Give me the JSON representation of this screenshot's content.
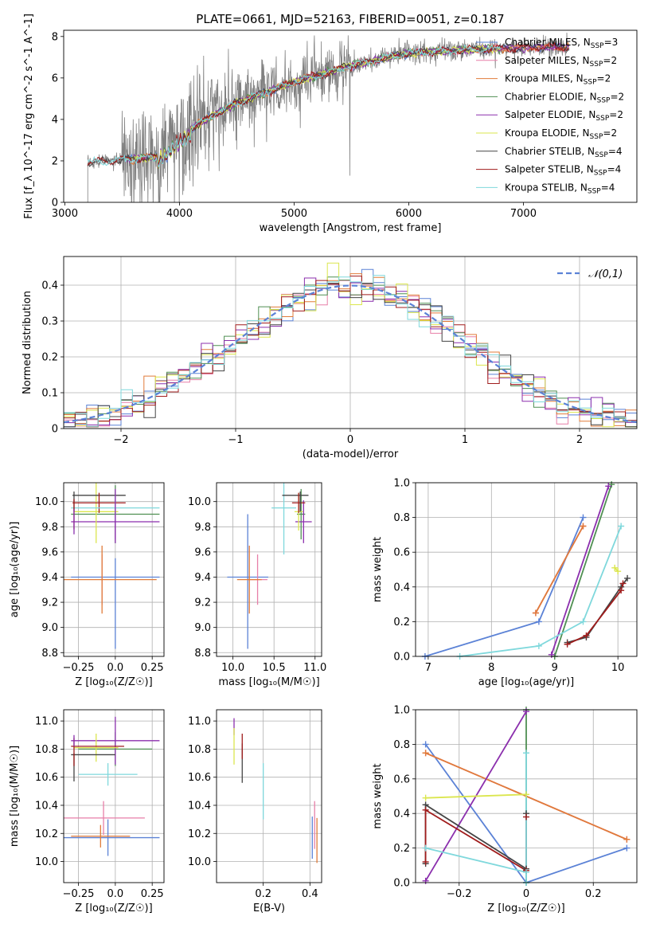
{
  "figure": {
    "title": "PLATE=0661, MJD=52163, FIBERID=0051, z=0.187"
  },
  "models": [
    {
      "name": "Chabrier MILES",
      "nssp": "3",
      "color": "#5b82d6"
    },
    {
      "name": "Salpeter MILES",
      "nssp": "2",
      "color": "#e77fa8"
    },
    {
      "name": "Kroupa MILES",
      "nssp": "2",
      "color": "#e07b39"
    },
    {
      "name": "Chabrier ELODIE",
      "nssp": "2",
      "color": "#4f8f52"
    },
    {
      "name": "Salpeter ELODIE",
      "nssp": "2",
      "color": "#8b2fad"
    },
    {
      "name": "Kroupa ELODIE",
      "nssp": "2",
      "color": "#dbe64e"
    },
    {
      "name": "Chabrier STELIB",
      "nssp": "4",
      "color": "#444444"
    },
    {
      "name": "Salpeter STELIB",
      "nssp": "4",
      "color": "#a01c1c"
    },
    {
      "name": "Kroupa STELIB",
      "nssp": "4",
      "color": "#7fd8dc"
    }
  ],
  "chart_data": [
    {
      "id": "spectrum",
      "type": "line",
      "xlabel": "wavelength [Angstrom, rest frame]",
      "ylabel": "Flux [f_λ 10^-17 erg cm^-2 s^-1 A^-1]",
      "xlim": [
        2990,
        7990
      ],
      "ylim": [
        0,
        8.3
      ],
      "xticks": [
        3000,
        4000,
        5000,
        6000,
        7000
      ],
      "yticks": [
        0,
        2,
        4,
        6,
        8
      ],
      "data_color": "#808080",
      "continuum": {
        "x": [
          3200,
          3400,
          3600,
          3800,
          4000,
          4200,
          4500,
          5000,
          5500,
          6000,
          6500,
          7000,
          7400
        ],
        "y": [
          1.9,
          2.0,
          2.1,
          2.2,
          3.2,
          3.9,
          4.8,
          5.8,
          6.6,
          7.2,
          7.35,
          7.45,
          7.5
        ]
      },
      "grid": false,
      "legend": "upper right"
    },
    {
      "id": "residuals",
      "type": "histogram",
      "xlabel": "(data-model)/error",
      "ylabel": "Normed distribution",
      "xlim": [
        -2.5,
        2.5
      ],
      "ylim": [
        0,
        0.48
      ],
      "xticks": [
        -2,
        -1,
        0,
        1,
        2
      ],
      "yticks": [
        0.0,
        0.1,
        0.2,
        0.3,
        0.4
      ],
      "reference": {
        "name": "𝒩(0,1)",
        "mean": 0,
        "sigma": 1,
        "color": "#5b82d6"
      },
      "bin_width": 0.1,
      "grid": true,
      "legend": "upper right"
    },
    {
      "id": "age-vs-Z",
      "type": "errorbar",
      "xlabel": "Z [log₁₀(Z/Z☉)]",
      "ylabel": "age  [log₁₀(age/yr)]",
      "xlim": [
        -0.35,
        0.33
      ],
      "ylim": [
        8.77,
        10.15
      ],
      "xticks": [
        -0.25,
        0.0,
        0.25
      ],
      "yticks": [
        8.8,
        9.0,
        9.2,
        9.4,
        9.6,
        9.8,
        10.0
      ],
      "points": [
        {
          "model": 0,
          "x": 0.0,
          "y": 9.4,
          "xerr": 0.3,
          "yerr": [
            0.57,
            0.15
          ]
        },
        {
          "model": 1,
          "x": -0.09,
          "y": 9.38,
          "xerr": 0.0,
          "yerr": 0.2
        },
        {
          "model": 2,
          "x": -0.09,
          "y": 9.38,
          "xerr": 0.37,
          "yerr": 0.27
        },
        {
          "model": 0,
          "x": -0.3,
          "y": 9.38,
          "xerr": 0.0,
          "yerr": 0.0
        },
        {
          "model": 3,
          "x": 0.0,
          "y": 9.9,
          "xerr": 0.3,
          "yerr": 0.23
        },
        {
          "model": 4,
          "x": 0.0,
          "y": 9.84,
          "xerr": 0.3,
          "yerr": 0.17
        },
        {
          "model": 5,
          "x": -0.13,
          "y": 9.92,
          "xerr": 0.15,
          "yerr": 0.25
        },
        {
          "model": 6,
          "x": -0.11,
          "y": 10.05,
          "xerr": 0.18,
          "yerr": 0.0
        },
        {
          "model": 7,
          "x": -0.11,
          "y": 9.99,
          "xerr": 0.18,
          "yerr": 0.08
        },
        {
          "model": 8,
          "x": 0.0,
          "y": 9.95,
          "xerr": 0.3,
          "yerr": 0.1
        },
        {
          "model": 6,
          "x": -0.28,
          "y": 10.0,
          "xerr": 0.0,
          "yerr": 0.08
        },
        {
          "model": 7,
          "x": -0.28,
          "y": 9.9,
          "xerr": 0.0,
          "yerr": 0.12
        },
        {
          "model": 4,
          "x": -0.28,
          "y": 9.84,
          "xerr": 0.0,
          "yerr": 0.1
        },
        {
          "model": 4,
          "x": 0.0,
          "y": 9.9,
          "xerr": 0.0,
          "yerr": 0.2
        }
      ],
      "grid": true
    },
    {
      "id": "age-vs-mass",
      "type": "errorbar",
      "xlabel": "mass [log₁₀(M/M☉)]",
      "ylabel": "",
      "xlim": [
        9.8,
        11.08
      ],
      "ylim": [
        8.77,
        10.15
      ],
      "xticks": [
        10.0,
        10.5,
        11.0
      ],
      "yticks": [
        8.8,
        9.0,
        9.2,
        9.4,
        9.6,
        9.8,
        10.0
      ],
      "points": [
        {
          "model": 0,
          "x": 10.18,
          "y": 9.4,
          "xerr": 0.25,
          "yerr": [
            0.57,
            0.5
          ]
        },
        {
          "model": 1,
          "x": 10.3,
          "y": 9.38,
          "xerr": 0.12,
          "yerr": 0.2
        },
        {
          "model": 2,
          "x": 10.2,
          "y": 9.38,
          "xerr": 0.15,
          "yerr": 0.27
        },
        {
          "model": 8,
          "x": 10.62,
          "y": 9.95,
          "xerr": 0.15,
          "yerr": 0.37
        },
        {
          "model": 3,
          "x": 10.83,
          "y": 9.9,
          "xerr": 0.05,
          "yerr": 0.2
        },
        {
          "model": 4,
          "x": 10.86,
          "y": 9.84,
          "xerr": 0.1,
          "yerr": 0.17
        },
        {
          "model": 5,
          "x": 10.8,
          "y": 9.92,
          "xerr": 0.05,
          "yerr": 0.15
        },
        {
          "model": 6,
          "x": 10.76,
          "y": 10.05,
          "xerr": 0.16,
          "yerr": 0.0
        },
        {
          "model": 7,
          "x": 10.8,
          "y": 9.99,
          "xerr": 0.08,
          "yerr": 0.08
        },
        {
          "model": 6,
          "x": 10.82,
          "y": 10.0,
          "xerr": 0.0,
          "yerr": 0.08
        }
      ],
      "grid": true
    },
    {
      "id": "mass-weight-vs-age",
      "type": "line",
      "xlabel": "age  [log₁₀(age/yr)]",
      "ylabel": "mass weight",
      "xlim": [
        6.8,
        10.3
      ],
      "ylim": [
        0,
        1.0
      ],
      "xticks": [
        7,
        8,
        9,
        10
      ],
      "yticks": [
        0.0,
        0.2,
        0.4,
        0.6,
        0.8,
        1.0
      ],
      "series": [
        {
          "model": 0,
          "x": [
            6.95,
            8.75,
            9.45
          ],
          "y": [
            0.0,
            0.2,
            0.8
          ]
        },
        {
          "model": 1,
          "x": [
            8.7,
            9.45
          ],
          "y": [
            0.25,
            0.75
          ]
        },
        {
          "model": 2,
          "x": [
            8.7,
            9.45
          ],
          "y": [
            0.25,
            0.75
          ]
        },
        {
          "model": 3,
          "x": [
            9.0,
            9.9
          ],
          "y": [
            0.0,
            0.99
          ]
        },
        {
          "model": 4,
          "x": [
            8.95,
            9.85
          ],
          "y": [
            0.01,
            0.98
          ]
        },
        {
          "model": 5,
          "x": [
            9.95,
            10.0
          ],
          "y": [
            0.51,
            0.49
          ]
        },
        {
          "model": 6,
          "x": [
            9.2,
            9.5,
            10.05,
            10.15
          ],
          "y": [
            0.08,
            0.11,
            0.4,
            0.45
          ]
        },
        {
          "model": 7,
          "x": [
            9.2,
            9.5,
            10.05,
            10.08
          ],
          "y": [
            0.07,
            0.12,
            0.38,
            0.42
          ]
        },
        {
          "model": 8,
          "x": [
            7.5,
            8.75,
            9.45,
            10.05
          ],
          "y": [
            0.0,
            0.06,
            0.2,
            0.75
          ]
        }
      ],
      "grid": true
    },
    {
      "id": "mass-vs-Z",
      "type": "errorbar",
      "xlabel": "Z [log₁₀(Z/Z☉)]",
      "ylabel": "mass [log₁₀(M/M☉)]",
      "xlim": [
        -0.35,
        0.33
      ],
      "ylim": [
        9.85,
        11.08
      ],
      "xticks": [
        -0.25,
        0.0,
        0.25
      ],
      "yticks": [
        10.0,
        10.2,
        10.4,
        10.6,
        10.8,
        11.0
      ],
      "points": [
        {
          "model": 0,
          "x": -0.05,
          "y": 10.17,
          "xerr": 0.35,
          "yerr": 0.13
        },
        {
          "model": 1,
          "x": -0.08,
          "y": 10.31,
          "xerr": 0.28,
          "yerr": 0.12
        },
        {
          "model": 2,
          "x": -0.1,
          "y": 10.18,
          "xerr": 0.2,
          "yerr": 0.08
        },
        {
          "model": 8,
          "x": -0.05,
          "y": 10.62,
          "xerr": 0.2,
          "yerr": 0.08
        },
        {
          "model": 3,
          "x": 0.0,
          "y": 10.8,
          "xerr": 0.25,
          "yerr": 0.12
        },
        {
          "model": 4,
          "x": 0.0,
          "y": 10.86,
          "xerr": 0.3,
          "yerr": 0.17
        },
        {
          "model": 5,
          "x": -0.13,
          "y": 10.81,
          "xerr": 0.15,
          "yerr": 0.1
        },
        {
          "model": 6,
          "x": -0.15,
          "y": 10.76,
          "xerr": 0.15,
          "yerr": 0.0
        },
        {
          "model": 7,
          "x": -0.12,
          "y": 10.82,
          "xerr": 0.18,
          "yerr": 0.0
        },
        {
          "model": 6,
          "x": -0.28,
          "y": 10.67,
          "xerr": 0.0,
          "yerr": 0.1
        },
        {
          "model": 7,
          "x": -0.28,
          "y": 10.78,
          "xerr": 0.0,
          "yerr": 0.1
        },
        {
          "model": 4,
          "x": -0.28,
          "y": 10.86,
          "xerr": 0.0,
          "yerr": 0.04
        }
      ],
      "grid": true
    },
    {
      "id": "mass-vs-EBV",
      "type": "errorbar",
      "xlabel": "E(B-V)",
      "ylabel": "",
      "xlim": [
        0.0,
        0.45
      ],
      "ylim": [
        9.85,
        11.08
      ],
      "xticks": [
        0.2,
        0.4
      ],
      "yticks": [
        10.0,
        10.2,
        10.4,
        10.6,
        10.8,
        11.0
      ],
      "points": [
        {
          "model": 4,
          "x": 0.075,
          "y": 10.96,
          "xerr": 0.0,
          "yerr": 0.06
        },
        {
          "model": 5,
          "x": 0.075,
          "y": 10.82,
          "xerr": 0.0,
          "yerr": 0.13
        },
        {
          "model": 6,
          "x": 0.11,
          "y": 10.7,
          "xerr": 0.0,
          "yerr": 0.14
        },
        {
          "model": 7,
          "x": 0.11,
          "y": 10.82,
          "xerr": 0.0,
          "yerr": 0.09
        },
        {
          "model": 8,
          "x": 0.2,
          "y": 10.5,
          "xerr": 0.0,
          "yerr": 0.2
        },
        {
          "model": 0,
          "x": 0.41,
          "y": 10.17,
          "xerr": 0.0,
          "yerr": 0.15
        },
        {
          "model": 1,
          "x": 0.42,
          "y": 10.26,
          "xerr": 0.0,
          "yerr": 0.17
        },
        {
          "model": 2,
          "x": 0.43,
          "y": 10.15,
          "xerr": 0.0,
          "yerr": 0.16
        }
      ],
      "grid": true
    },
    {
      "id": "mass-weight-vs-Z",
      "type": "line",
      "xlabel": "Z [log₁₀(Z/Z☉)]",
      "ylabel": "mass weight",
      "xlim": [
        -0.33,
        0.33
      ],
      "ylim": [
        0,
        1.0
      ],
      "xticks": [
        -0.2,
        0.0,
        0.2
      ],
      "yticks": [
        0.0,
        0.2,
        0.4,
        0.6,
        0.8,
        1.0
      ],
      "series": [
        {
          "model": 0,
          "x": [
            -0.3,
            0.0,
            0.3
          ],
          "y": [
            0.8,
            0.0,
            0.2
          ]
        },
        {
          "model": 1,
          "x": [
            -0.3,
            0.3
          ],
          "y": [
            0.75,
            0.25
          ]
        },
        {
          "model": 2,
          "x": [
            -0.3,
            0.3
          ],
          "y": [
            0.75,
            0.25
          ]
        },
        {
          "model": 3,
          "x": [
            0.0,
            0.0
          ],
          "y": [
            0.0,
            1.0
          ]
        },
        {
          "model": 4,
          "x": [
            -0.3,
            0.0
          ],
          "y": [
            0.01,
            0.99
          ]
        },
        {
          "model": 5,
          "x": [
            -0.3,
            0.0
          ],
          "y": [
            0.49,
            0.51
          ]
        },
        {
          "model": 6,
          "x": [
            -0.3,
            -0.3,
            0.0,
            0.0
          ],
          "y": [
            0.11,
            0.45,
            0.08,
            0.4
          ]
        },
        {
          "model": 7,
          "x": [
            -0.3,
            -0.3,
            0.0,
            0.0
          ],
          "y": [
            0.12,
            0.42,
            0.07,
            0.38
          ]
        },
        {
          "model": 8,
          "x": [
            -0.3,
            0.0,
            0.0,
            0.0
          ],
          "y": [
            0.2,
            0.06,
            0.0,
            0.75
          ]
        }
      ],
      "grid": true
    }
  ]
}
